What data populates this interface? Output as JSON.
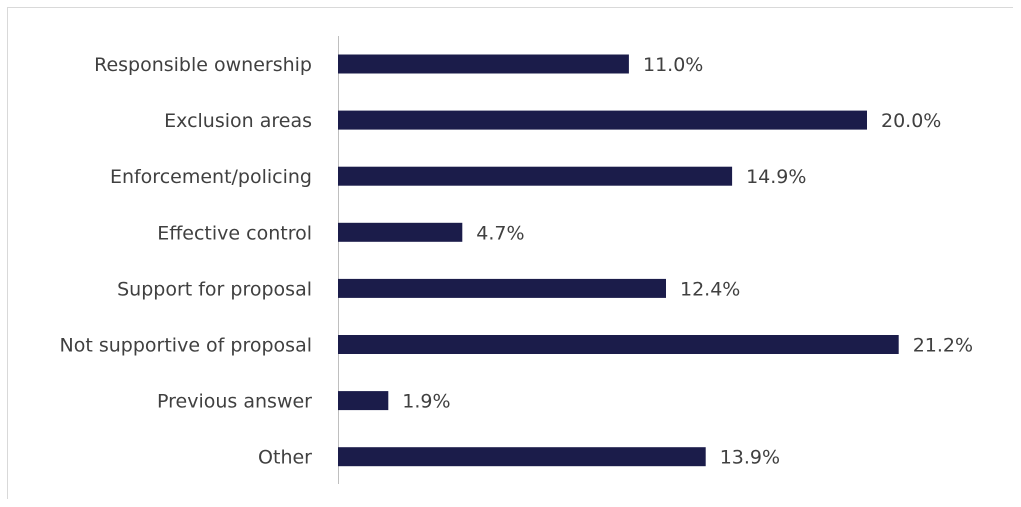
{
  "chart_data": {
    "type": "bar",
    "orientation": "horizontal",
    "categories": [
      "Responsible ownership",
      "Exclusion areas",
      "Enforcement/policing",
      "Effective control",
      "Support for proposal",
      "Not supportive of proposal",
      "Previous answer",
      "Other"
    ],
    "values": [
      11.0,
      20.0,
      14.9,
      4.7,
      12.4,
      21.2,
      1.9,
      13.9
    ],
    "value_labels": [
      "11.0%",
      "20.0%",
      "14.9%",
      "4.7%",
      "12.4%",
      "21.2%",
      "1.9%",
      "13.9%"
    ],
    "unit": "%",
    "bar_color": "#1b1c4a",
    "axis_color": "#bfbfbf",
    "xlim": [
      0,
      22.5
    ],
    "grid": false,
    "legend": "none"
  }
}
